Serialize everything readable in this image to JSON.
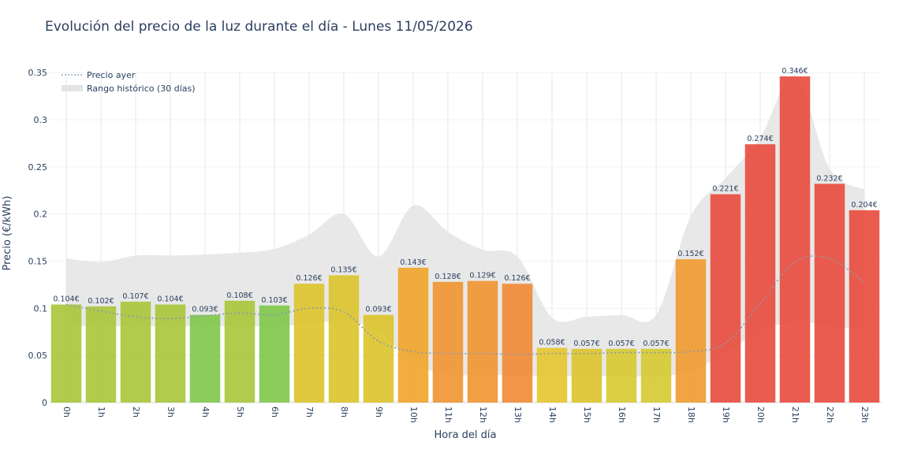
{
  "chart_data": {
    "type": "bar",
    "title": "Evolución del precio de la luz durante el día - Lunes 11/05/2026",
    "xlabel": "Hora del día",
    "ylabel": "Precio (€/kWh)",
    "ylim": [
      0,
      0.36
    ],
    "yticks": [
      0,
      0.05,
      0.1,
      0.15,
      0.2,
      0.25,
      0.3,
      0.35
    ],
    "ytick_labels": [
      "0",
      "0.05",
      "0.1",
      "0.15",
      "0.2",
      "0.25",
      "0.3",
      "0.35"
    ],
    "categories": [
      "0h",
      "1h",
      "2h",
      "3h",
      "4h",
      "5h",
      "6h",
      "7h",
      "8h",
      "9h",
      "10h",
      "11h",
      "12h",
      "13h",
      "14h",
      "15h",
      "16h",
      "17h",
      "18h",
      "19h",
      "20h",
      "21h",
      "22h",
      "23h"
    ],
    "values": [
      0.104,
      0.102,
      0.107,
      0.104,
      0.093,
      0.108,
      0.103,
      0.126,
      0.135,
      0.093,
      0.143,
      0.128,
      0.129,
      0.126,
      0.058,
      0.057,
      0.057,
      0.057,
      0.152,
      0.221,
      0.274,
      0.346,
      0.232,
      0.204
    ],
    "labels": [
      "0.104€",
      "0.102€",
      "0.107€",
      "0.104€",
      "0.093€",
      "0.108€",
      "0.103€",
      "0.126€",
      "0.135€",
      "0.093€",
      "0.143€",
      "0.128€",
      "0.129€",
      "0.126€",
      "0.058€",
      "0.057€",
      "0.057€",
      "0.057€",
      "0.152€",
      "0.221€",
      "0.274€",
      "0.346€",
      "0.232€",
      "0.204€"
    ],
    "bar_colors": [
      "#a9c53a",
      "#a9c53a",
      "#a9c53a",
      "#a9c53a",
      "#7ec749",
      "#a9c53a",
      "#7ec749",
      "#dcc32a",
      "#dcc32a",
      "#dcc32a",
      "#f0a428",
      "#f09430",
      "#f09430",
      "#f08a33",
      "#e6c52d",
      "#dcc32a",
      "#d6c930",
      "#d6c930",
      "#f09a2c",
      "#e84a3c",
      "#e84a3c",
      "#e84a3c",
      "#e84a3c",
      "#e84a3c"
    ],
    "series": [
      {
        "name": "Precio ayer",
        "style": "dotted",
        "color": "#8a9aa8",
        "values": [
          0.104,
          0.097,
          0.091,
          0.089,
          0.092,
          0.095,
          0.093,
          0.1,
          0.096,
          0.065,
          0.054,
          0.052,
          0.052,
          0.051,
          0.052,
          0.052,
          0.053,
          0.053,
          0.054,
          0.063,
          0.105,
          0.149,
          0.153,
          0.127
        ]
      },
      {
        "name": "Rango histórico (30 días)",
        "color": "#e4e4e4",
        "upper": [
          0.153,
          0.149,
          0.156,
          0.156,
          0.157,
          0.159,
          0.163,
          0.178,
          0.2,
          0.155,
          0.209,
          0.181,
          0.162,
          0.155,
          0.09,
          0.091,
          0.093,
          0.093,
          0.198,
          0.238,
          0.281,
          0.346,
          0.248,
          0.226
        ],
        "lower": [
          0.081,
          0.081,
          0.081,
          0.081,
          0.081,
          0.081,
          0.081,
          0.083,
          0.087,
          0.075,
          0.042,
          0.03,
          0.029,
          0.029,
          0.028,
          0.028,
          0.028,
          0.028,
          0.033,
          0.053,
          0.075,
          0.086,
          0.081,
          0.078
        ]
      }
    ]
  }
}
